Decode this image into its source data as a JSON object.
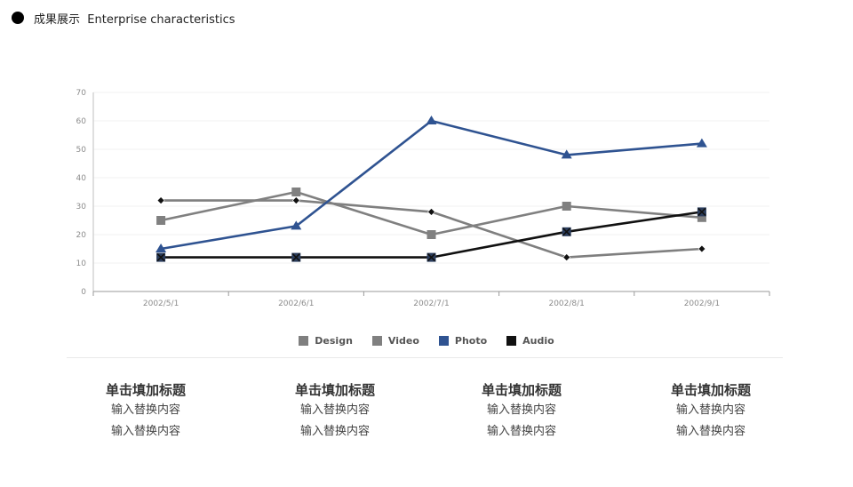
{
  "header": {
    "title": "成果展示  Enterprise characteristics"
  },
  "chart_data": {
    "type": "line",
    "categories": [
      "2002/5/1",
      "2002/6/1",
      "2002/7/1",
      "2002/8/1",
      "2002/9/1"
    ],
    "ylim": [
      0,
      70
    ],
    "yticks": [
      0,
      10,
      20,
      30,
      40,
      50,
      60,
      70
    ],
    "grid": true,
    "legend": "bottom",
    "series": [
      {
        "name": "Design",
        "values": [
          32,
          32,
          28,
          12,
          15
        ],
        "color": "#7f7f7f",
        "marker": "diamond"
      },
      {
        "name": "Video",
        "values": [
          25,
          35,
          20,
          30,
          26
        ],
        "color": "#808080",
        "marker": "square"
      },
      {
        "name": "Photo",
        "values": [
          15,
          23,
          60,
          48,
          52
        ],
        "color": "#2f5391",
        "marker": "triangle"
      },
      {
        "name": "Audio",
        "values": [
          12,
          12,
          12,
          21,
          28
        ],
        "color": "#111111",
        "marker": "x-square"
      }
    ]
  },
  "cards": [
    {
      "title": "单击填加标题",
      "line1": "输入替换内容",
      "line2": "输入替换内容"
    },
    {
      "title": "单击填加标题",
      "line1": "输入替换内容",
      "line2": "输入替换内容"
    },
    {
      "title": "单击填加标题",
      "line1": "输入替换内容",
      "line2": "输入替换内容"
    },
    {
      "title": "单击填加标题",
      "line1": "输入替换内容",
      "line2": "输入替换内容"
    }
  ]
}
